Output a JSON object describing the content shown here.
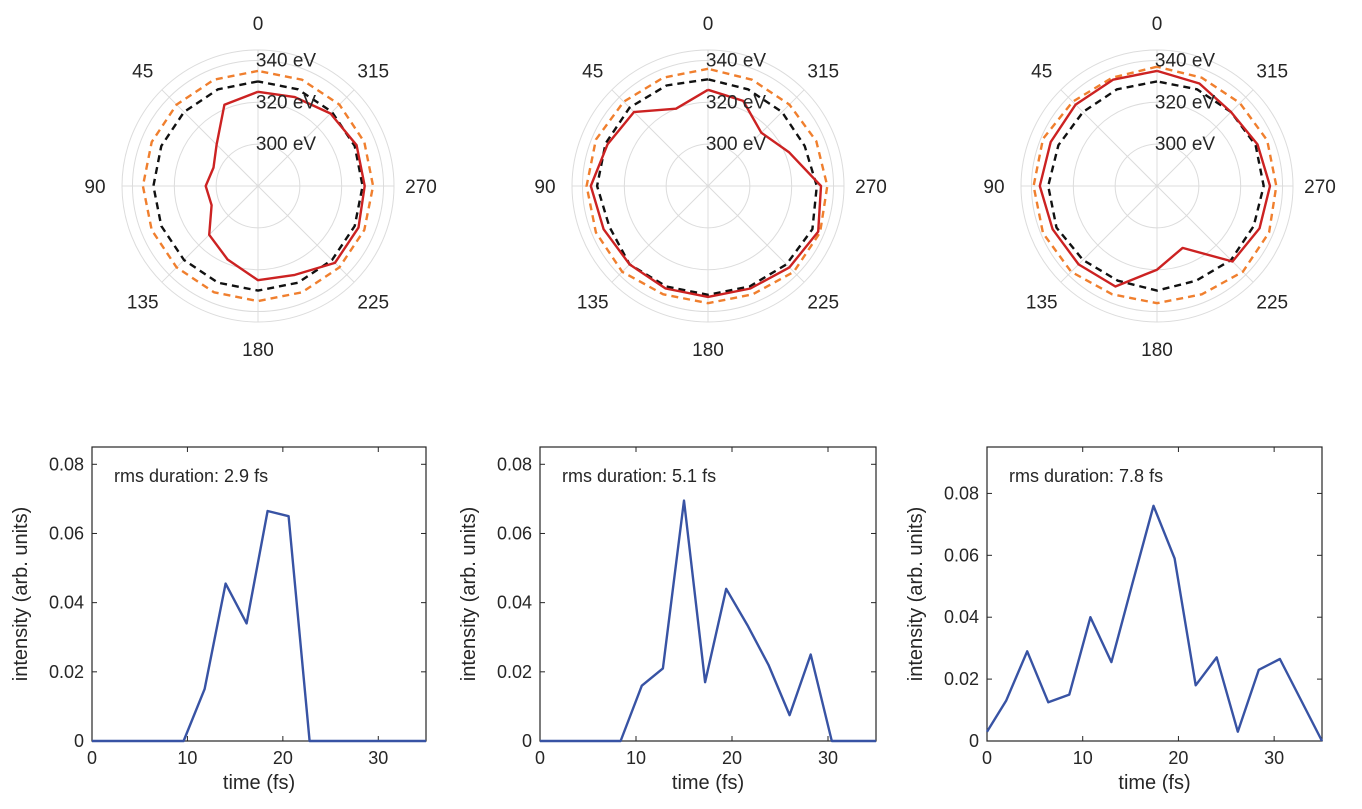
{
  "chart_data": [
    {
      "type": "polar",
      "angle_tick_labels": [
        "0",
        "45",
        "90",
        "135",
        "180",
        "225",
        "270",
        "315"
      ],
      "radial_tick_labels": [
        "300 eV",
        "320 eV",
        "340 eV"
      ],
      "rlim": [
        280,
        345
      ],
      "rticks": [
        300,
        320,
        340
      ],
      "angles_deg": [
        0,
        22.5,
        45,
        67.5,
        90,
        112.5,
        135,
        157.5,
        180,
        202.5,
        225,
        247.5,
        270,
        292.5,
        315,
        337.5
      ],
      "series": [
        {
          "color": "#f07f2e",
          "style": "dashed",
          "values": [
            335,
            335,
            335,
            335,
            335,
            335,
            335,
            335,
            335,
            335,
            335,
            335,
            335,
            335,
            335,
            335
          ]
        },
        {
          "color": "#111111",
          "style": "dashed",
          "values": [
            330,
            330,
            330,
            330,
            330,
            330,
            330,
            330,
            330,
            330,
            330,
            330,
            330,
            330,
            330,
            330
          ]
        },
        {
          "color": "#cc2222",
          "style": "solid",
          "values": [
            325,
            322,
            308,
            303,
            305,
            304,
            313,
            318,
            325,
            326,
            332,
            332,
            331,
            331,
            329,
            326
          ]
        }
      ]
    },
    {
      "type": "polar",
      "angle_tick_labels": [
        "0",
        "45",
        "90",
        "135",
        "180",
        "225",
        "270",
        "315"
      ],
      "radial_tick_labels": [
        "300 eV",
        "320 eV",
        "340 eV"
      ],
      "rlim": [
        280,
        345
      ],
      "rticks": [
        300,
        320,
        340
      ],
      "angles_deg": [
        0,
        22.5,
        45,
        67.5,
        90,
        112.5,
        135,
        157.5,
        180,
        202.5,
        225,
        247.5,
        270,
        292.5,
        315,
        337.5
      ],
      "series": [
        {
          "color": "#f07f2e",
          "style": "dashed",
          "values": [
            336,
            336,
            337,
            338,
            338,
            338,
            338,
            336,
            336,
            336,
            338,
            338,
            337,
            336,
            335,
            335
          ]
        },
        {
          "color": "#111111",
          "style": "dashed",
          "values": [
            331,
            332,
            333,
            333,
            333,
            331,
            333,
            332,
            332,
            332,
            333,
            334,
            332,
            330,
            330,
            330
          ]
        },
        {
          "color": "#cc2222",
          "style": "solid",
          "values": [
            326,
            320,
            330,
            332,
            336,
            334,
            333,
            333,
            333,
            333,
            335,
            337,
            334,
            322,
            316,
            324
          ]
        }
      ]
    },
    {
      "type": "polar",
      "angle_tick_labels": [
        "0",
        "45",
        "90",
        "135",
        "180",
        "225",
        "270",
        "315"
      ],
      "radial_tick_labels": [
        "300 eV",
        "320 eV",
        "340 eV"
      ],
      "rlim": [
        280,
        345
      ],
      "rticks": [
        300,
        320,
        340
      ],
      "angles_deg": [
        0,
        22.5,
        45,
        67.5,
        90,
        112.5,
        135,
        157.5,
        180,
        202.5,
        225,
        247.5,
        270,
        292.5,
        315,
        337.5
      ],
      "series": [
        {
          "color": "#f07f2e",
          "style": "dashed",
          "values": [
            337,
            336,
            337,
            339,
            339,
            339,
            338,
            336,
            336,
            336,
            338,
            338,
            337,
            337,
            336,
            336
          ]
        },
        {
          "color": "#111111",
          "style": "dashed",
          "values": [
            330,
            330,
            330,
            331,
            332,
            332,
            330,
            329,
            330,
            329,
            330,
            330,
            331,
            331,
            330,
            330
          ]
        },
        {
          "color": "#cc2222",
          "style": "solid",
          "values": [
            335,
            335,
            335,
            335,
            336,
            334,
            333,
            332,
            320,
            312,
            331,
            333,
            334,
            332,
            330,
            333
          ]
        }
      ]
    },
    {
      "type": "line",
      "annotation": "rms duration: 2.9 fs",
      "xlabel": "time (fs)",
      "ylabel": "intensity (arb. units)",
      "xlim": [
        0,
        35
      ],
      "ylim": [
        0,
        0.085
      ],
      "xticks": [
        0,
        10,
        20,
        30
      ],
      "yticks": [
        0,
        0.02,
        0.04,
        0.06,
        0.08
      ],
      "ytick_labels": [
        "0",
        "0.02",
        "0.04",
        "0.06",
        "0.08"
      ],
      "color": "#3853a4",
      "x": [
        0,
        9.6,
        11.8,
        14.0,
        16.2,
        18.4,
        20.6,
        22.8,
        35
      ],
      "y": [
        0,
        0,
        0.015,
        0.0455,
        0.034,
        0.0665,
        0.065,
        0,
        0
      ]
    },
    {
      "type": "line",
      "annotation": "rms duration: 5.1 fs",
      "xlabel": "time (fs)",
      "ylabel": "intensity (arb. units)",
      "xlim": [
        0,
        35
      ],
      "ylim": [
        0,
        0.085
      ],
      "xticks": [
        0,
        10,
        20,
        30
      ],
      "yticks": [
        0,
        0.02,
        0.04,
        0.06,
        0.08
      ],
      "ytick_labels": [
        "0",
        "0.02",
        "0.04",
        "0.06",
        "0.08"
      ],
      "color": "#3853a4",
      "x": [
        0,
        8.4,
        10.6,
        12.8,
        15.0,
        17.2,
        19.4,
        21.6,
        23.8,
        26.0,
        28.2,
        30.4,
        35
      ],
      "y": [
        0,
        0,
        0.016,
        0.021,
        0.0695,
        0.017,
        0.044,
        0.0335,
        0.022,
        0.0075,
        0.025,
        0,
        0
      ]
    },
    {
      "type": "line",
      "annotation": "rms duration: 7.8 fs",
      "xlabel": "time (fs)",
      "ylabel": "intensity (arb. units)",
      "xlim": [
        0,
        35
      ],
      "ylim": [
        0,
        0.095
      ],
      "xticks": [
        0,
        10,
        20,
        30
      ],
      "yticks": [
        0,
        0.02,
        0.04,
        0.06,
        0.08
      ],
      "ytick_labels": [
        "0",
        "0.02",
        "0.04",
        "0.06",
        "0.08"
      ],
      "color": "#3853a4",
      "x": [
        0,
        2.0,
        4.2,
        6.4,
        8.6,
        10.8,
        13.0,
        15.2,
        17.4,
        19.6,
        21.8,
        24.0,
        26.2,
        28.4,
        30.6,
        35
      ],
      "y": [
        0.003,
        0.013,
        0.029,
        0.0125,
        0.015,
        0.04,
        0.0255,
        0.051,
        0.076,
        0.059,
        0.018,
        0.027,
        0.003,
        0.023,
        0.0265,
        0
      ]
    }
  ]
}
